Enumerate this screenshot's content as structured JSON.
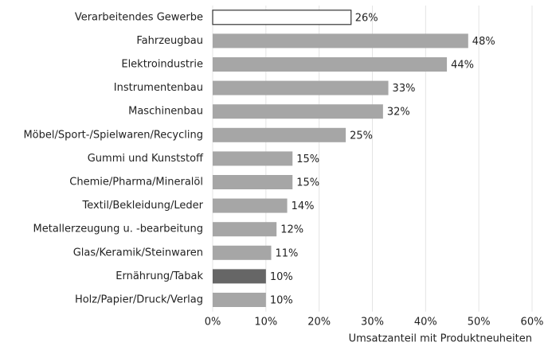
{
  "chart_data": {
    "type": "barh",
    "categories": [
      "Verarbeitendes Gewerbe",
      "Fahrzeugbau",
      "Elektroindustrie",
      "Instrumentenbau",
      "Maschinenbau",
      "Möbel/Sport-/Spielwaren/Recycling",
      "Gummi und Kunststoff",
      "Chemie/Pharma/Mineralöl",
      "Textil/Bekleidung/Leder",
      "Metallerzeugung u. -bearbeitung",
      "Glas/Keramik/Steinwaren",
      "Ernährung/Tabak",
      "Holz/Papier/Druck/Verlag"
    ],
    "values": [
      26,
      48,
      44,
      33,
      32,
      25,
      15,
      15,
      14,
      12,
      11,
      10,
      10
    ],
    "value_labels": [
      "26%",
      "48%",
      "44%",
      "33%",
      "32%",
      "25%",
      "15%",
      "15%",
      "14%",
      "12%",
      "11%",
      "10%",
      "10%"
    ],
    "colors": [
      "#ffffff",
      "#a6a6a6",
      "#a6a6a6",
      "#a6a6a6",
      "#a6a6a6",
      "#a6a6a6",
      "#a6a6a6",
      "#a6a6a6",
      "#a6a6a6",
      "#a6a6a6",
      "#a6a6a6",
      "#666666",
      "#a6a6a6"
    ],
    "xlim": [
      0,
      60
    ],
    "xticks": [
      {
        "value": 0,
        "label": "0%"
      },
      {
        "value": 10,
        "label": "10%"
      },
      {
        "value": 20,
        "label": "20%"
      },
      {
        "value": 30,
        "label": "30%"
      },
      {
        "value": 40,
        "label": "40%"
      },
      {
        "value": 50,
        "label": "50%"
      },
      {
        "value": 60,
        "label": "60%"
      }
    ],
    "xlabel": "Umsatzanteil mit Produktneuheiten",
    "grid": true
  }
}
